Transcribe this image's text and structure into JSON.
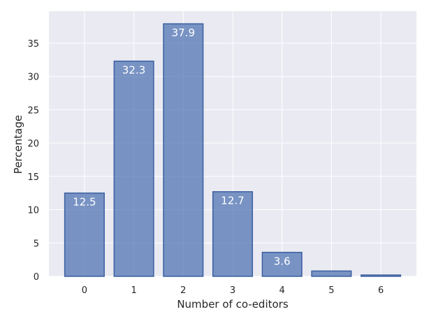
{
  "chart_data": {
    "type": "bar",
    "categories": [
      "0",
      "1",
      "2",
      "3",
      "4",
      "5",
      "6"
    ],
    "values": [
      12.5,
      32.3,
      37.9,
      12.7,
      3.6,
      0.8,
      0.2
    ],
    "data_labels": [
      "12.5",
      "32.3",
      "37.9",
      "12.7",
      "3.6",
      "",
      ""
    ],
    "title": "",
    "xlabel": "Number of co-editors",
    "ylabel": "Percentage",
    "ylim": [
      0,
      39.8
    ],
    "yticks": [
      0,
      5,
      10,
      15,
      20,
      25,
      30,
      35
    ],
    "grid": true,
    "legend": "none",
    "colors": {
      "bar_fill": "#4c72b0",
      "bar_edge": "#3b5fa0",
      "plot_background": "#eaeaf2",
      "grid": "#ffffff",
      "label_text": "#ffffff"
    }
  }
}
